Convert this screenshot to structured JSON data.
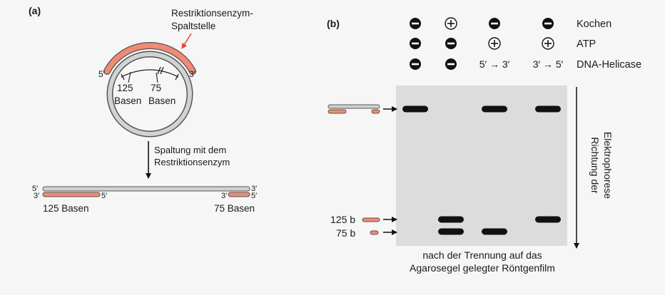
{
  "panel_a": {
    "label": "(a)",
    "site_label_line1": "Restriktionsenzym-",
    "site_label_line2": "Spaltstelle",
    "circle": {
      "left_end": "5′",
      "right_end": "3′",
      "seg1_num": "125",
      "seg1_unit": "Basen",
      "seg2_num": "75",
      "seg2_unit": "Basen"
    },
    "cleavage_line1": "Spaltung mit dem",
    "cleavage_line2": "Restriktionsenzym",
    "linear": {
      "top_left": "5′",
      "top_right": "3′",
      "bottom_left_outer": "3′",
      "bottom_left_inner": "5′",
      "bottom_right_inner": "3′",
      "bottom_right_outer": "5′",
      "fragment_left": "125 Basen",
      "fragment_right": "75 Basen"
    },
    "colors": {
      "salmon": "#f08a73",
      "gray": "#c9c9c9"
    }
  },
  "panel_b": {
    "label": "(b)",
    "conditions": [
      {
        "name": "Kochen",
        "lanes": [
          "minus",
          "plus",
          "minus",
          "minus"
        ]
      },
      {
        "name": "ATP",
        "lanes": [
          "minus",
          "minus",
          "plus",
          "plus"
        ]
      },
      {
        "name": "DNA-Helicase",
        "lanes": [
          "minus",
          "minus",
          "5′ → 3′",
          "3′ → 5′"
        ]
      }
    ],
    "marker_125": "125 b",
    "marker_75": "75 b",
    "direction_line1": "Richtung der",
    "direction_line2": "Elektrophorese",
    "caption_line1": "nach der Trennung auf das",
    "caption_line2": "Agarosegel gelegter Röntgenfilm",
    "bands": [
      {
        "lane": 1,
        "row": "duplex"
      },
      {
        "lane": 2,
        "row": "125b"
      },
      {
        "lane": 2,
        "row": "75b"
      },
      {
        "lane": 3,
        "row": "duplex"
      },
      {
        "lane": 3,
        "row": "75b"
      },
      {
        "lane": 4,
        "row": "duplex"
      },
      {
        "lane": 4,
        "row": "125b"
      }
    ],
    "colors": {
      "gel": "#dcdcdc",
      "band": "#111111"
    }
  }
}
